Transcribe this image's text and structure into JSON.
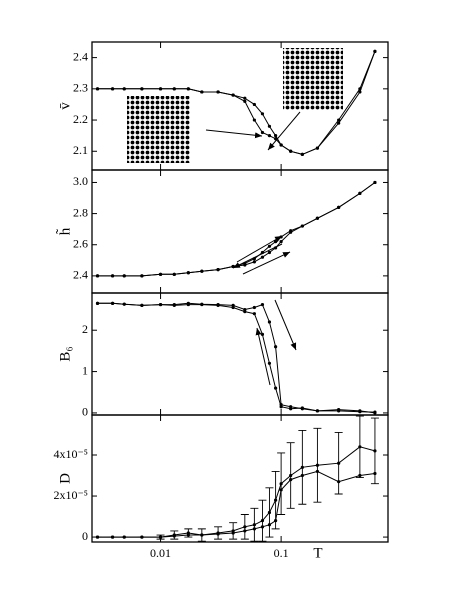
{
  "chart_data": [
    {
      "type": "line",
      "ylabel": "v̄",
      "log_x": true,
      "xlim": [
        0.0027,
        0.77
      ],
      "xticks": [
        0.01,
        0.1
      ],
      "ylim": [
        2.04,
        2.45
      ],
      "yticks": [
        2.1,
        2.2,
        2.3,
        2.4
      ],
      "x": [
        0.003,
        0.004,
        0.005,
        0.007,
        0.01,
        0.013,
        0.017,
        0.022,
        0.03,
        0.04,
        0.05,
        0.06,
        0.07,
        0.08,
        0.09,
        0.1,
        0.12,
        0.15,
        0.2,
        0.3,
        0.45,
        0.6
      ],
      "series": [
        {
          "color": "#000",
          "values": [
            2.3,
            2.3,
            2.3,
            2.3,
            2.3,
            2.3,
            2.3,
            2.29,
            2.29,
            2.28,
            2.27,
            2.25,
            2.22,
            2.18,
            2.15,
            2.12,
            2.1,
            2.09,
            2.11,
            2.2,
            2.3,
            2.42
          ]
        },
        {
          "color": "#000",
          "values": [
            2.3,
            2.3,
            2.3,
            2.3,
            2.3,
            2.3,
            2.3,
            2.29,
            2.29,
            2.28,
            2.26,
            2.2,
            2.16,
            2.15,
            2.14,
            2.12,
            2.1,
            2.09,
            2.11,
            2.19,
            2.29,
            2.42
          ]
        }
      ]
    },
    {
      "type": "line",
      "ylabel": "h̃",
      "log_x": true,
      "xlim": [
        0.0027,
        0.77
      ],
      "xticks": [
        0.01,
        0.1
      ],
      "ylim": [
        2.29,
        3.08
      ],
      "yticks": [
        2.4,
        2.6,
        2.8,
        {
          "value": 3,
          "label": "3.0"
        }
      ],
      "x": [
        0.003,
        0.004,
        0.005,
        0.007,
        0.01,
        0.013,
        0.017,
        0.022,
        0.03,
        0.04,
        0.05,
        0.06,
        0.07,
        0.08,
        0.09,
        0.1,
        0.12,
        0.15,
        0.2,
        0.3,
        0.45,
        0.6
      ],
      "series": [
        {
          "color": "#000",
          "values": [
            2.4,
            2.4,
            2.4,
            2.4,
            2.41,
            2.41,
            2.42,
            2.43,
            2.44,
            2.46,
            2.48,
            2.51,
            2.55,
            2.59,
            2.62,
            2.65,
            2.69,
            2.72,
            2.77,
            2.84,
            2.93,
            3.0
          ]
        },
        {
          "color": "#000",
          "values": [
            2.4,
            2.4,
            2.4,
            2.4,
            2.41,
            2.41,
            2.42,
            2.43,
            2.44,
            2.46,
            2.47,
            2.49,
            2.52,
            2.55,
            2.58,
            2.62,
            2.68,
            2.72,
            2.77,
            2.84,
            2.93,
            3.0
          ]
        }
      ]
    },
    {
      "type": "line",
      "ylabel": "B₆",
      "log_x": true,
      "xlim": [
        0.0027,
        0.77
      ],
      "xticks": [
        0.01,
        0.1
      ],
      "ylim": [
        -0.05,
        2.9
      ],
      "yticks": [
        0,
        1,
        2
      ],
      "x": [
        0.003,
        0.004,
        0.005,
        0.007,
        0.01,
        0.013,
        0.017,
        0.022,
        0.03,
        0.04,
        0.05,
        0.06,
        0.07,
        0.08,
        0.09,
        0.1,
        0.12,
        0.15,
        0.2,
        0.3,
        0.45,
        0.6
      ],
      "series": [
        {
          "color": "#000",
          "values": [
            2.65,
            2.65,
            2.63,
            2.6,
            2.62,
            2.62,
            2.65,
            2.63,
            2.62,
            2.6,
            2.5,
            2.55,
            2.62,
            2.2,
            1.6,
            0.2,
            0.15,
            0.1,
            0.05,
            0.08,
            0.05,
            0.0
          ]
        },
        {
          "color": "#000",
          "values": [
            2.65,
            2.65,
            2.63,
            2.6,
            2.62,
            2.6,
            2.62,
            2.62,
            2.6,
            2.55,
            2.45,
            2.4,
            1.9,
            1.2,
            0.6,
            0.15,
            0.1,
            0.12,
            0.05,
            0.05,
            0.03,
            0.02
          ]
        }
      ]
    },
    {
      "type": "line",
      "ylabel": "D",
      "xlabel": "T",
      "log_x": true,
      "xlim": [
        0.0027,
        0.77
      ],
      "xticks": [
        0.01,
        0.1
      ],
      "ylim": [
        -2.4e-06,
        5.95e-05
      ],
      "yticks": [
        0,
        {
          "value": 2e-05,
          "label": "2x10⁻⁵"
        },
        {
          "value": 4e-05,
          "label": "4x10⁻⁵"
        }
      ],
      "x": [
        0.003,
        0.004,
        0.005,
        0.007,
        0.01,
        0.013,
        0.017,
        0.022,
        0.03,
        0.04,
        0.05,
        0.06,
        0.07,
        0.08,
        0.09,
        0.1,
        0.12,
        0.15,
        0.2,
        0.3,
        0.45,
        0.6
      ],
      "series": [
        {
          "color": "#000",
          "values": [
            0,
            0,
            0,
            0,
            0,
            1e-06,
            2e-06,
            1e-06,
            2e-06,
            3e-06,
            5e-06,
            6e-06,
            8e-06,
            1.2e-05,
            1.8e-05,
            2.6e-05,
            3e-05,
            3.4e-05,
            3.5e-05,
            3.6e-05,
            4.4e-05,
            4.2e-05
          ],
          "errors": [
            0,
            0,
            0,
            0,
            1e-06,
            2e-06,
            2e-06,
            3e-06,
            3e-06,
            4e-06,
            6e-06,
            8e-06,
            1e-05,
            1.2e-05,
            1.4e-05,
            1.5e-05,
            1.6e-05,
            1.8e-05,
            1.8e-05,
            1.5e-05,
            1.5e-05,
            1.6e-05
          ]
        },
        {
          "color": "#000",
          "values": [
            0,
            0,
            0,
            0,
            0,
            5e-07,
            1e-06,
            1e-06,
            1.5e-06,
            2e-06,
            3e-06,
            4e-06,
            5e-06,
            6e-06,
            8e-06,
            2.3e-05,
            2.8e-05,
            3e-05,
            3.2e-05,
            2.7e-05,
            3e-05,
            3.1e-05
          ]
        }
      ]
    }
  ]
}
